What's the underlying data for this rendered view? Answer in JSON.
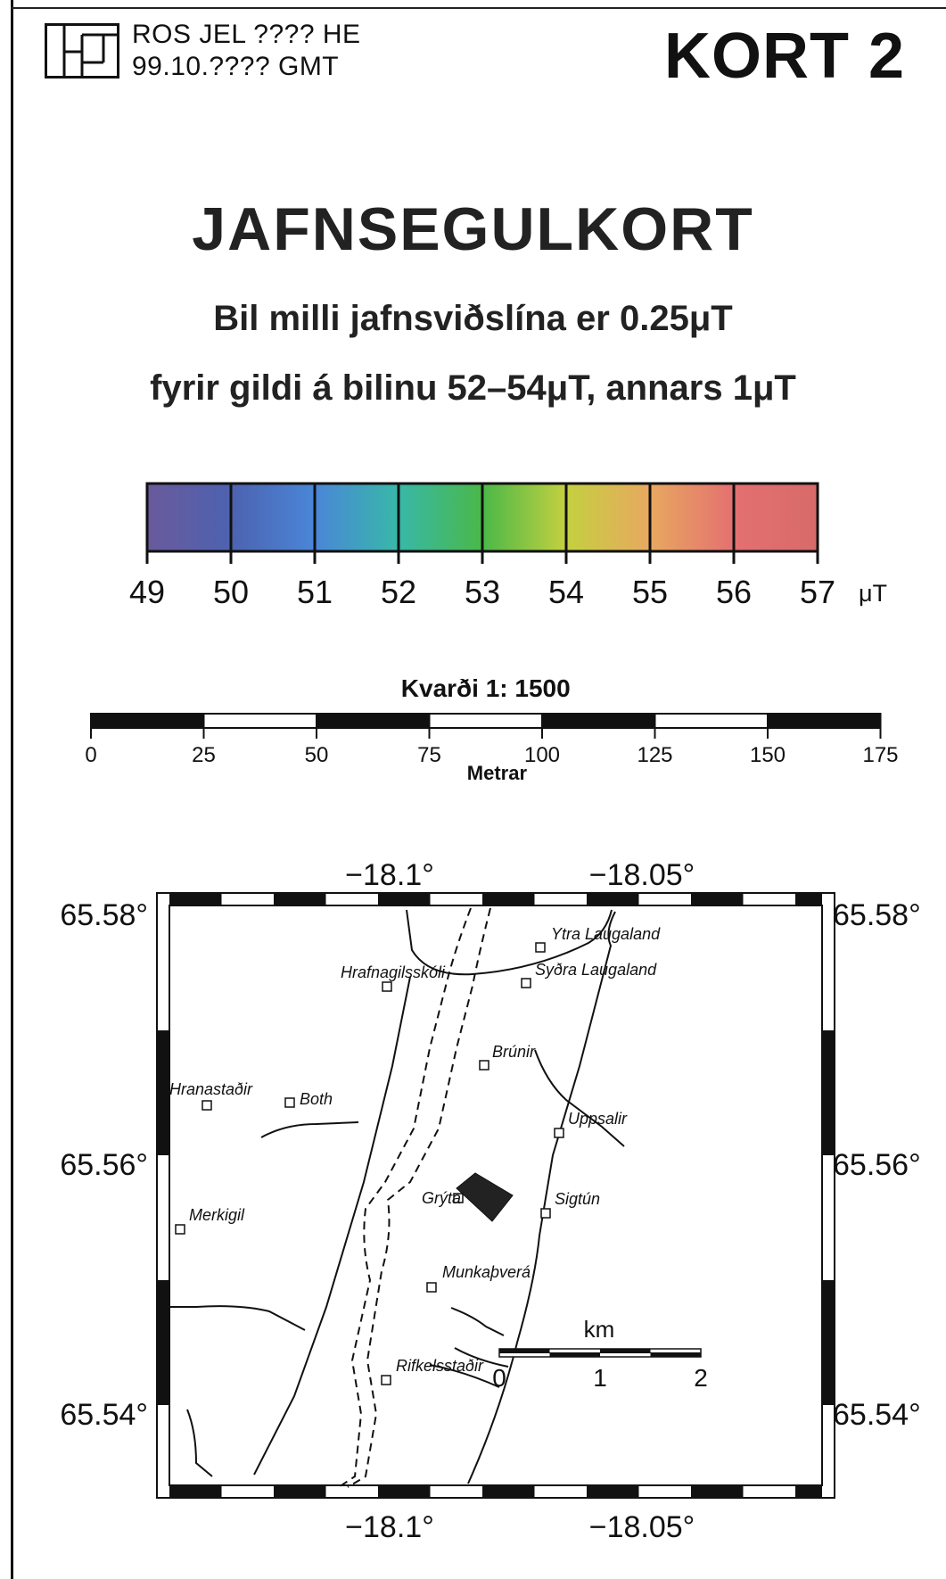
{
  "header": {
    "line1": "ROS JEL ???? HE",
    "line2": "99.10.???? GMT",
    "sheet": "KORT 2"
  },
  "title": "JAFNSEGULKORT",
  "subtitle_1": "Bil milli jafnsviðslína er 0.25μT",
  "subtitle_2": "fyrir gildi á bilinu 52–54μT, annars 1μT",
  "colorbar": {
    "ticks": [
      "49",
      "50",
      "51",
      "52",
      "53",
      "54",
      "55",
      "56",
      "57"
    ],
    "unit": "μT",
    "colors": [
      "#6a5a9c",
      "#4d62b0",
      "#4a86d8",
      "#38b8a8",
      "#4ab848",
      "#c4d040",
      "#e8a860",
      "#e47070",
      "#d86a6a"
    ]
  },
  "scale": {
    "title": "Kvarði 1: 1500",
    "ticks": [
      "0",
      "25",
      "50",
      "75",
      "100",
      "125",
      "150",
      "175"
    ],
    "unit": "Metrar"
  },
  "map": {
    "lon_labels": [
      "−18.1°",
      "−18.05°"
    ],
    "lat_labels": [
      "65.58°",
      "65.56°",
      "65.54°"
    ],
    "places": [
      {
        "name": "Ytra Laugaland"
      },
      {
        "name": "Syðra Laugaland"
      },
      {
        "name": "Hrafnagilsskóli"
      },
      {
        "name": "Brúnir"
      },
      {
        "name": "Hranastaðir"
      },
      {
        "name": "Both"
      },
      {
        "name": "Uppsalir"
      },
      {
        "name": "Grýta"
      },
      {
        "name": "Sigtún"
      },
      {
        "name": "Merkigil"
      },
      {
        "name": "Munkaþverá"
      },
      {
        "name": "Rifkelsstaðir"
      }
    ],
    "km_label": "km",
    "km_ticks": [
      "0",
      "1",
      "2"
    ]
  }
}
